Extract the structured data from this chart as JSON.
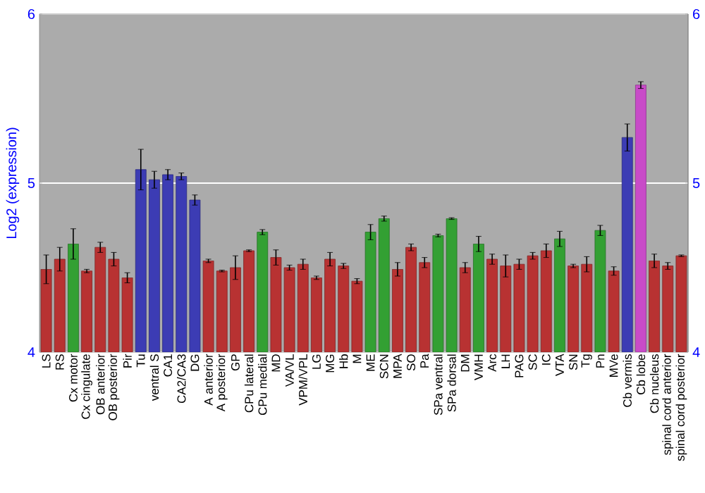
{
  "chart_data": {
    "type": "bar",
    "ylabel": "Log2 (expression)",
    "categories": [
      "LS",
      "RS",
      "Cx motor",
      "Cx cingulate",
      "OB anterior",
      "OB posterior",
      "Pir",
      "Tu",
      "ventral S",
      "CA1",
      "CA2/CA3",
      "DG",
      "A anterior",
      "A posterior",
      "GP",
      "CPu lateral",
      "CPu medial",
      "MD",
      "VA/VL",
      "VPM/VPL",
      "LG",
      "MG",
      "Hb",
      "M",
      "ME",
      "SCN",
      "MPA",
      "SO",
      "Pa",
      "SPa ventral",
      "SPa dorsal",
      "DM",
      "VMH",
      "Arc",
      "LH",
      "PAG",
      "SC",
      "IC",
      "VTA",
      "SN",
      "Tg",
      "Pn",
      "MVe",
      "Cb vermis",
      "Cb lobe",
      "Cb nucleus",
      "spinal cord anterior",
      "spinal cord posterior"
    ],
    "values": [
      4.49,
      4.55,
      4.64,
      4.48,
      4.62,
      4.55,
      4.44,
      5.08,
      5.02,
      5.05,
      5.04,
      4.9,
      4.54,
      4.48,
      4.5,
      4.6,
      4.71,
      4.56,
      4.5,
      4.52,
      4.44,
      4.55,
      4.51,
      4.42,
      4.71,
      4.79,
      4.49,
      4.62,
      4.53,
      4.69,
      4.79,
      4.5,
      4.64,
      4.55,
      4.51,
      4.52,
      4.57,
      4.6,
      4.67,
      4.51,
      4.52,
      4.72,
      4.48,
      5.27,
      5.58,
      4.54,
      4.51,
      4.57
    ],
    "errors": [
      0.085,
      0.07,
      0.09,
      0.01,
      0.03,
      0.04,
      0.03,
      0.12,
      0.05,
      0.03,
      0.02,
      0.03,
      0.01,
      0.005,
      0.07,
      0.005,
      0.015,
      0.045,
      0.015,
      0.03,
      0.01,
      0.04,
      0.015,
      0.015,
      0.045,
      0.015,
      0.04,
      0.02,
      0.03,
      0.008,
      0.005,
      0.03,
      0.045,
      0.03,
      0.065,
      0.03,
      0.02,
      0.04,
      0.045,
      0.01,
      0.045,
      0.03,
      0.025,
      0.08,
      0.02,
      0.04,
      0.02,
      0.005
    ],
    "colors": [
      "#b83232",
      "#b83232",
      "#33a033",
      "#b83232",
      "#b83232",
      "#b83232",
      "#b83232",
      "#3c3cb4",
      "#3c3cb4",
      "#3c3cb4",
      "#3c3cb4",
      "#3c3cb4",
      "#b83232",
      "#b83232",
      "#b83232",
      "#b83232",
      "#33a033",
      "#b83232",
      "#b83232",
      "#b83232",
      "#b83232",
      "#b83232",
      "#b83232",
      "#b83232",
      "#33a033",
      "#33a033",
      "#b83232",
      "#b83232",
      "#b83232",
      "#33a033",
      "#33a033",
      "#b83232",
      "#33a033",
      "#b83232",
      "#b83232",
      "#b83232",
      "#b83232",
      "#b83232",
      "#33a033",
      "#b83232",
      "#b83232",
      "#33a033",
      "#b83232",
      "#3c3cb4",
      "#c84bc8",
      "#b83232",
      "#b83232",
      "#b83232"
    ],
    "ylim": [
      4,
      6
    ],
    "yticks": [
      4,
      5,
      6
    ],
    "y2lim": [
      4,
      6
    ],
    "y2ticks": [
      4,
      5,
      6
    ],
    "grid": "y"
  }
}
